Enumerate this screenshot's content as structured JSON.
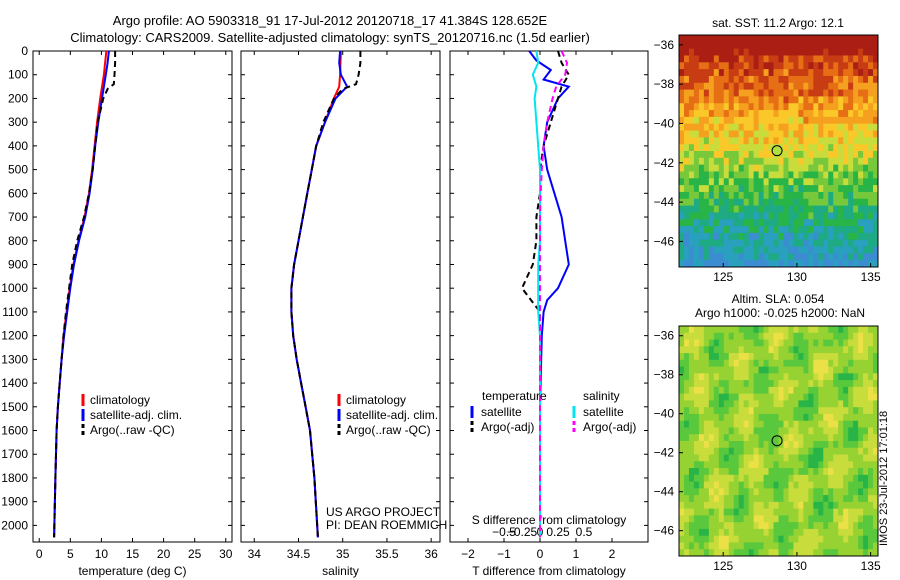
{
  "header": {
    "title_line1": "Argo profile: AO 5903318_91 17-Jul-2012 20120718_17 41.384S 128.652E",
    "title_line2": "Climatology: CARS2009. Satellite-adjusted climatology: synTS_20120716.nc (1.5d earlier)"
  },
  "footer_stamp": "IMOS 23-Jul-2012 17:01:18",
  "chart_data": [
    {
      "id": "temperature",
      "type": "line",
      "xlabel": "temperature (deg C)",
      "xlim": [
        -1,
        31
      ],
      "xticks": [
        0,
        5,
        10,
        15,
        20,
        25,
        30
      ],
      "ylim": [
        2070,
        0
      ],
      "yticks": [
        0,
        100,
        200,
        300,
        400,
        500,
        600,
        700,
        800,
        900,
        1000,
        1100,
        1200,
        1300,
        1400,
        1500,
        1600,
        1700,
        1800,
        1900,
        2000
      ],
      "legend": [
        "climatology",
        "satellite-adj. clim.",
        "Argo(..raw -QC)"
      ],
      "series": [
        {
          "name": "climatology",
          "color": "#ff0000",
          "dash": "",
          "y": [
            0,
            50,
            100,
            150,
            200,
            300,
            400,
            500,
            600,
            700,
            800,
            900,
            1000,
            1100,
            1200,
            1300,
            1400,
            1500,
            1600,
            1800,
            2050
          ],
          "x": [
            10.8,
            10.6,
            10.4,
            10.1,
            9.8,
            9.3,
            8.9,
            8.5,
            8.0,
            7.3,
            6.3,
            5.5,
            4.9,
            4.4,
            3.9,
            3.6,
            3.3,
            3.0,
            2.8,
            2.6,
            2.4
          ]
        },
        {
          "name": "satellite-adj. clim.",
          "color": "#0000ff",
          "dash": "",
          "y": [
            0,
            50,
            100,
            150,
            200,
            300,
            400,
            500,
            600,
            700,
            800,
            900,
            1000,
            1100,
            1200,
            1300,
            1400,
            1500,
            1600,
            1800,
            2050
          ],
          "x": [
            11.2,
            11.0,
            10.7,
            10.4,
            10.1,
            9.5,
            9.0,
            8.6,
            8.1,
            7.4,
            6.4,
            5.6,
            5.0,
            4.5,
            4.0,
            3.6,
            3.3,
            3.0,
            2.8,
            2.6,
            2.4
          ]
        },
        {
          "name": "Argo(..raw -QC)",
          "color": "#000000",
          "dash": "6,4",
          "y": [
            0,
            50,
            100,
            140,
            160,
            200,
            300,
            400,
            500,
            600,
            700,
            800,
            900,
            1000,
            1100,
            1200,
            1300,
            1400,
            1500,
            1600,
            1800,
            2050
          ],
          "x": [
            12.2,
            12.2,
            12.1,
            12.0,
            11.0,
            10.3,
            9.4,
            9.0,
            8.6,
            8.0,
            7.2,
            6.1,
            5.3,
            4.8,
            4.3,
            3.9,
            3.6,
            3.3,
            3.0,
            2.8,
            2.6,
            2.4
          ]
        }
      ]
    },
    {
      "id": "salinity",
      "type": "line",
      "xlabel": "salinity",
      "xlim": [
        33.85,
        36.1
      ],
      "xticks": [
        34,
        34.5,
        35,
        35.5,
        36
      ],
      "ylim": [
        2070,
        0
      ],
      "legend": [
        "climatology",
        "satellite-adj. clim.",
        "Argo(..raw -QC)"
      ],
      "annotation": [
        "US ARGO PROJECT",
        "PI: DEAN ROEMMICH"
      ],
      "series": [
        {
          "name": "climatology",
          "color": "#ff0000",
          "dash": "",
          "y": [
            0,
            100,
            150,
            200,
            300,
            400,
            500,
            600,
            700,
            800,
            900,
            1000,
            1100,
            1200,
            1300,
            1400,
            1500,
            1600,
            1800,
            2050
          ],
          "x": [
            34.98,
            34.97,
            34.96,
            34.9,
            34.8,
            34.7,
            34.65,
            34.6,
            34.55,
            34.5,
            34.45,
            34.42,
            34.42,
            34.44,
            34.48,
            34.53,
            34.58,
            34.63,
            34.68,
            34.72
          ]
        },
        {
          "name": "satellite-adj. clim.",
          "color": "#0000ff",
          "dash": "",
          "y": [
            0,
            50,
            100,
            150,
            200,
            300,
            400,
            500,
            600,
            700,
            800,
            900,
            1000,
            1100,
            1200,
            1300,
            1400,
            1500,
            1600,
            1800,
            2050
          ],
          "x": [
            34.97,
            34.96,
            34.98,
            35.05,
            34.92,
            34.8,
            34.7,
            34.65,
            34.6,
            34.55,
            34.5,
            34.45,
            34.42,
            34.42,
            34.44,
            34.48,
            34.53,
            34.58,
            34.63,
            34.68,
            34.72
          ]
        },
        {
          "name": "Argo(..raw -QC)",
          "color": "#000000",
          "dash": "6,4",
          "y": [
            0,
            50,
            100,
            140,
            160,
            200,
            300,
            400,
            500,
            600,
            700,
            800,
            900,
            1000,
            1100,
            1200,
            1300,
            1400,
            1500,
            1600,
            1800,
            2050
          ],
          "x": [
            35.2,
            35.2,
            35.18,
            35.15,
            35.0,
            34.9,
            34.78,
            34.7,
            34.65,
            34.6,
            34.55,
            34.5,
            34.45,
            34.42,
            34.42,
            34.44,
            34.48,
            34.53,
            34.58,
            34.63,
            34.68,
            34.72
          ]
        }
      ]
    },
    {
      "id": "difference",
      "type": "line",
      "xlabel": "T difference from climatology",
      "toplabel": "S difference from climatology",
      "xlim": [
        -2.5,
        3
      ],
      "xticks": [
        -2,
        -1,
        0,
        1,
        2
      ],
      "stickvals": [
        "-0.5",
        "-0.25",
        "0",
        "0.25",
        "0.5"
      ],
      "ylim": [
        2070,
        0
      ],
      "legend_headers": [
        "temperature",
        "salinity"
      ],
      "legend": [
        "satellite",
        "Argo(-adj)",
        "satellite",
        "Argo(-adj)"
      ],
      "series": [
        {
          "name": "satellite",
          "color": "#0000ff",
          "dash": "",
          "y": [
            0,
            40,
            80,
            120,
            150,
            200,
            300,
            400,
            500,
            600,
            700,
            800,
            900,
            1000,
            1050,
            1100,
            1200,
            1500,
            2050
          ],
          "x": [
            -0.3,
            -0.1,
            0.3,
            0.1,
            0.8,
            0.5,
            0.2,
            0.1,
            0.2,
            0.4,
            0.6,
            0.7,
            0.8,
            0.5,
            0.2,
            0.1,
            0.05,
            0.0,
            0.0
          ]
        },
        {
          "name": "Argo(-adj)",
          "color": "#000000",
          "dash": "6,4",
          "y": [
            0,
            50,
            100,
            150,
            200,
            300,
            400,
            500,
            600,
            700,
            800,
            900,
            1000,
            1100,
            1200,
            1500,
            2050
          ],
          "x": [
            0.5,
            0.6,
            0.8,
            0.6,
            0.5,
            0.3,
            0.1,
            0.0,
            0.0,
            -0.1,
            -0.1,
            -0.2,
            -0.5,
            0.0,
            0.0,
            0.0,
            0.0
          ]
        },
        {
          "name": "satellite",
          "color": "#00e5ee",
          "dash": "",
          "y": [
            0,
            50,
            100,
            150,
            200,
            300,
            400,
            500,
            600,
            700,
            800,
            900,
            1000,
            1100,
            1200,
            1500,
            2050
          ],
          "x": [
            -0.1,
            -0.05,
            -0.2,
            -0.1,
            -0.15,
            -0.1,
            -0.05,
            0.0,
            0.0,
            0.0,
            0.0,
            -0.05,
            -0.05,
            -0.05,
            0.0,
            0.0,
            0.0
          ]
        },
        {
          "name": "Argo(-adj)",
          "color": "#ff00ff",
          "dash": "6,4",
          "y": [
            0,
            50,
            100,
            130,
            150,
            200,
            300,
            400,
            500,
            600,
            700,
            800,
            900,
            1000,
            1100,
            1200,
            1500,
            2050
          ],
          "x": [
            0.6,
            0.75,
            0.7,
            0.55,
            0.45,
            0.35,
            0.2,
            0.1,
            0.05,
            0.02,
            0.0,
            0.0,
            0.0,
            0.0,
            0.0,
            0.0,
            0.0,
            0.0
          ]
        }
      ]
    },
    {
      "id": "sst_map",
      "type": "heatmap",
      "title": "sat. SST: 11.2  Argo: 12.1",
      "xticks": [
        125,
        130,
        135
      ],
      "yticks": [
        -36,
        -38,
        -40,
        -42,
        -44,
        -46
      ],
      "xlim": [
        122,
        135.5
      ],
      "ylim": [
        -47.3,
        -35.5
      ],
      "marker": {
        "lon": 128.652,
        "lat": -41.384
      }
    },
    {
      "id": "sla_map",
      "type": "heatmap",
      "title_line1": "Altim. SLA: 0.054",
      "title_line2": "Argo h1000: -0.025 h2000: NaN",
      "xticks": [
        125,
        130,
        135
      ],
      "yticks": [
        -36,
        -38,
        -40,
        -42,
        -44,
        -46
      ],
      "xlim": [
        122,
        135.5
      ],
      "ylim": [
        -47.3,
        -35.5
      ],
      "marker": {
        "lon": 128.652,
        "lat": -41.384
      }
    }
  ]
}
